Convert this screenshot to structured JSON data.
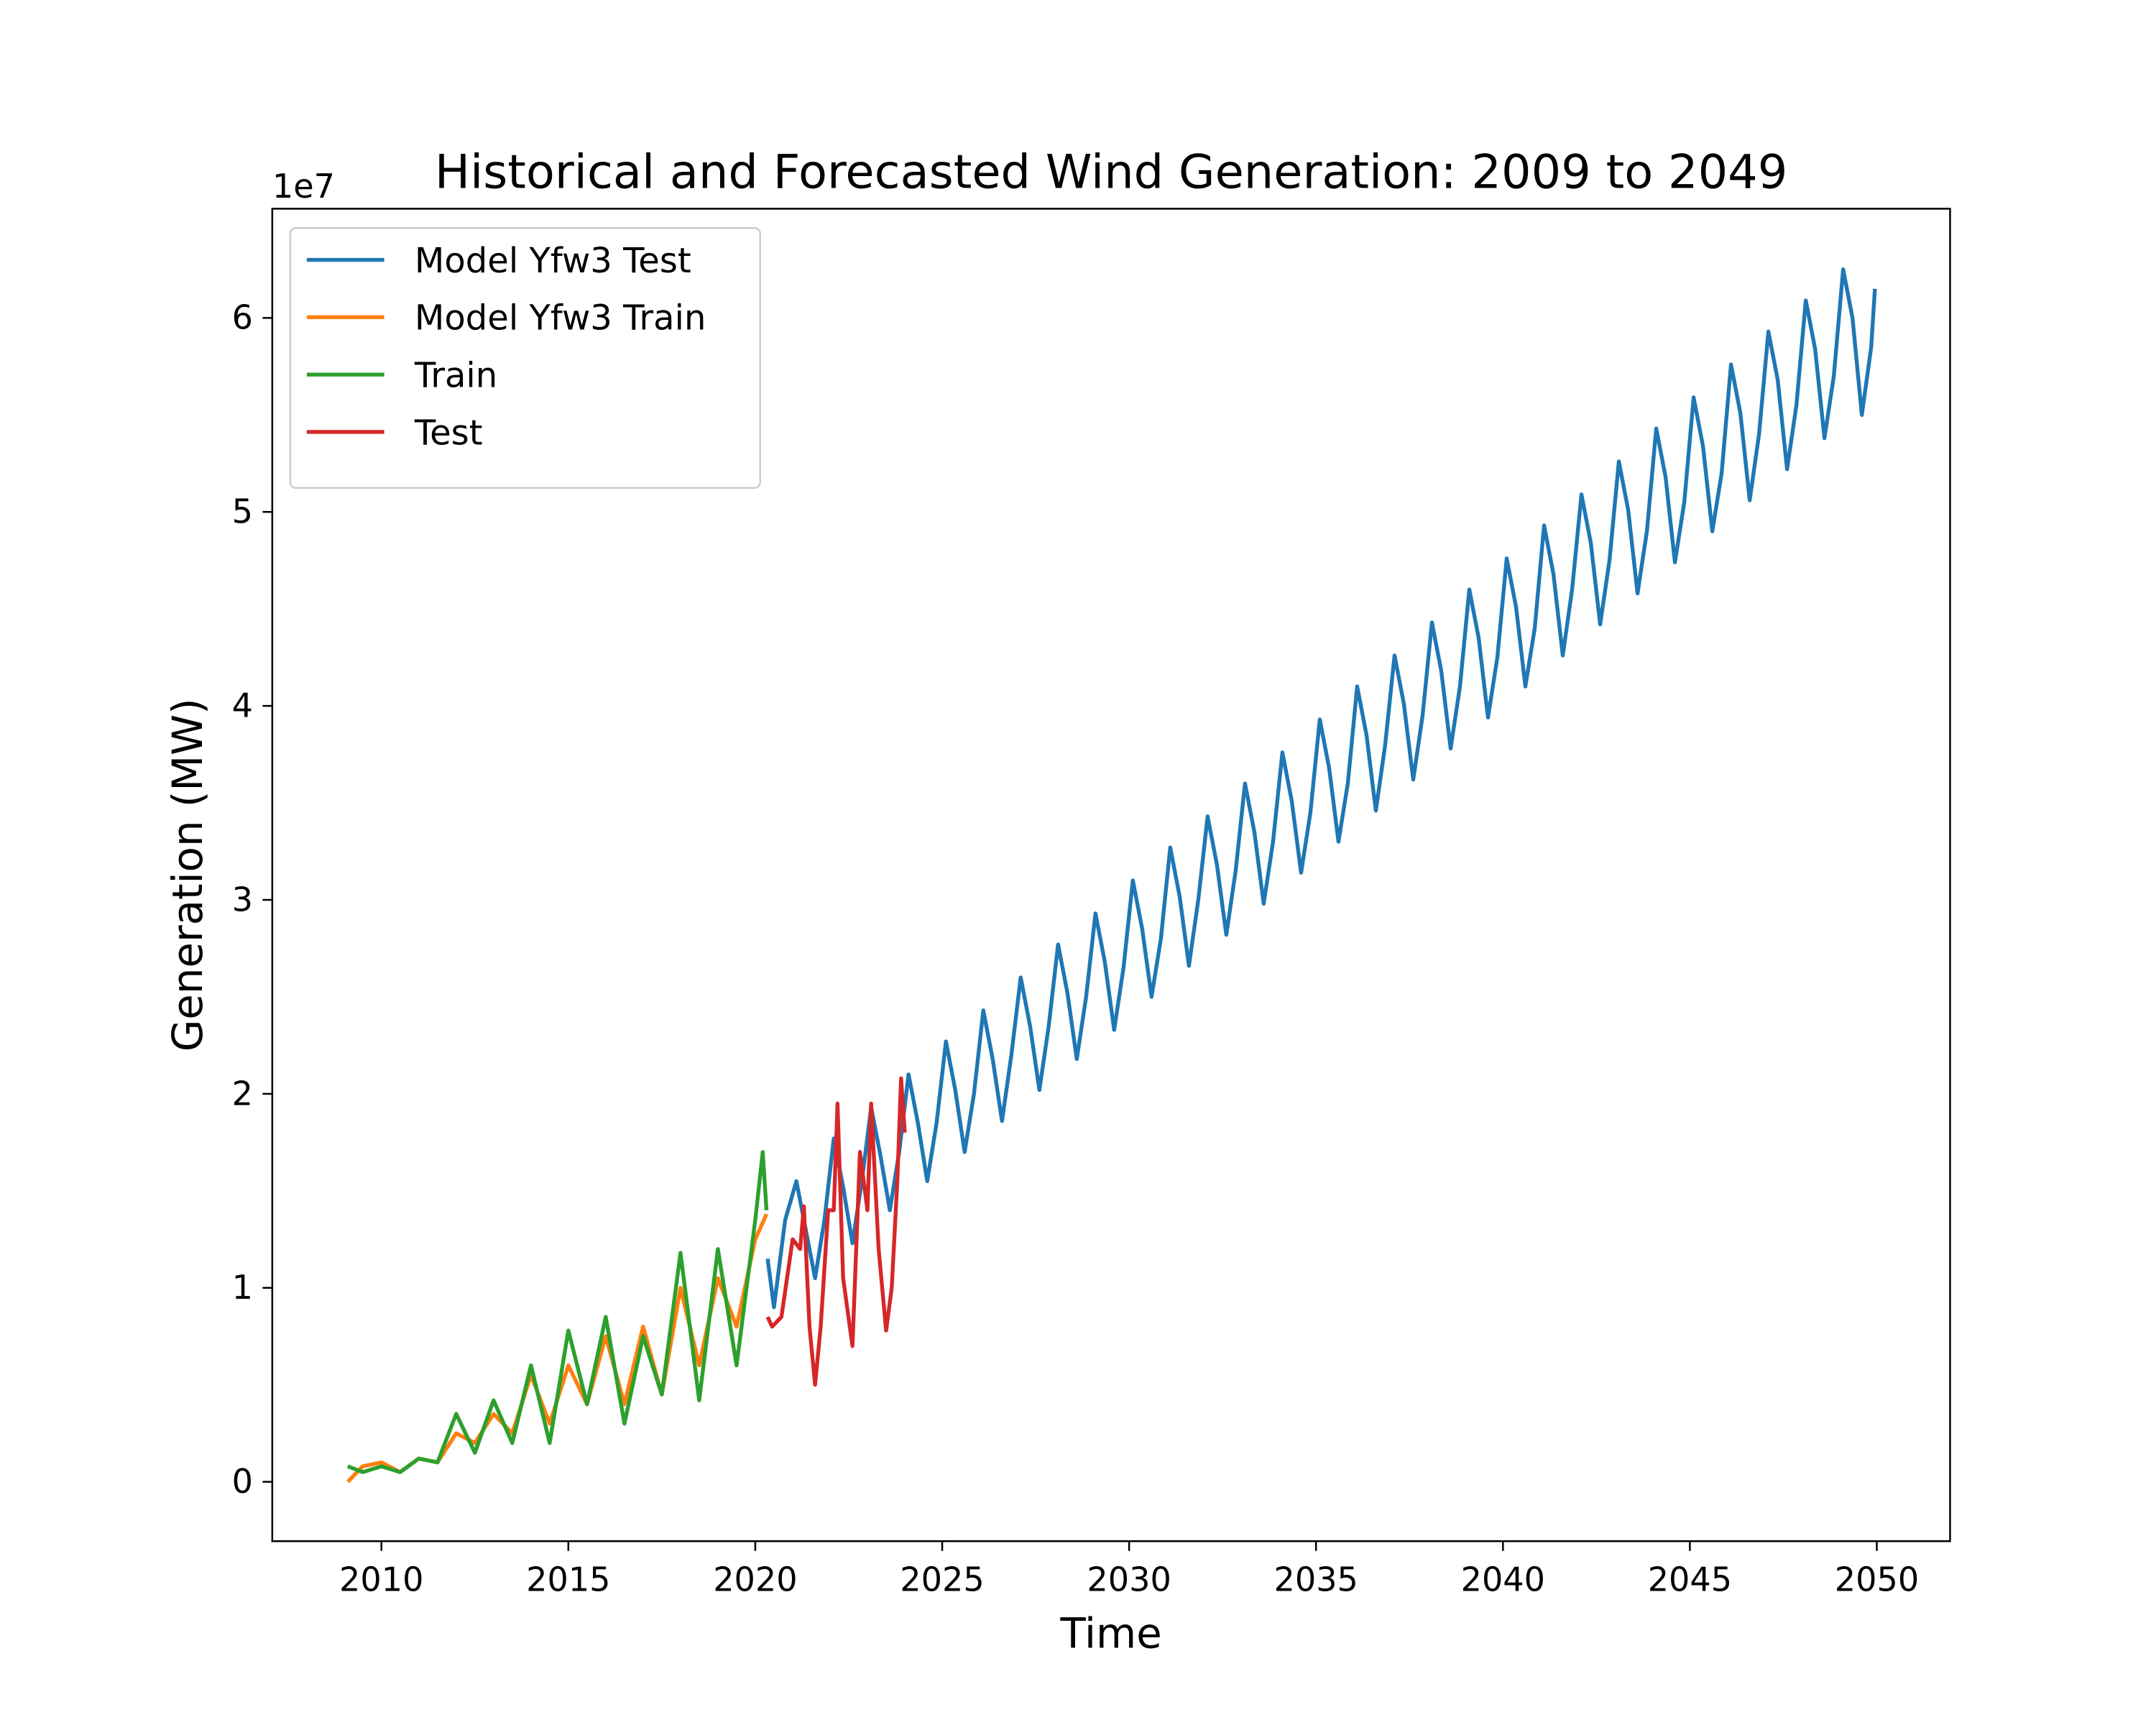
{
  "chart_data": {
    "type": "line",
    "title": "Historical and Forecasted Wind Generation: 2009 to 2049",
    "x_label": "Time",
    "y_label": "Generation (MW)",
    "y_offset_label": "1e7",
    "xlim": [
      2007.08,
      2051.96
    ],
    "ylim": [
      -0.306,
      6.563
    ],
    "xticks": [
      2010,
      2015,
      2020,
      2025,
      2030,
      2035,
      2040,
      2045,
      2050
    ],
    "yticks": [
      0,
      1,
      2,
      3,
      4,
      5,
      6
    ],
    "legend": "upper left",
    "series": [
      {
        "name": "Model Yfw3 Test",
        "color": "#1f77b4",
        "x": [
          2020.33,
          2020.5,
          2020.8,
          2021.1,
          2021.35,
          2021.6,
          2021.85,
          2022.1,
          2022.35,
          2022.6,
          2022.85,
          2023.1,
          2023.35,
          2023.6,
          2023.85,
          2024.1,
          2024.35,
          2024.6,
          2024.85,
          2025.1,
          2025.35,
          2025.6,
          2025.85,
          2026.1,
          2026.35,
          2026.6,
          2026.85,
          2027.1,
          2027.35,
          2027.6,
          2027.85,
          2028.1,
          2028.35,
          2028.6,
          2028.85,
          2029.1,
          2029.35,
          2029.6,
          2029.85,
          2030.1,
          2030.35,
          2030.6,
          2030.85,
          2031.1,
          2031.35,
          2031.6,
          2031.85,
          2032.1,
          2032.35,
          2032.6,
          2032.85,
          2033.1,
          2033.35,
          2033.6,
          2033.85,
          2034.1,
          2034.35,
          2034.6,
          2034.85,
          2035.1,
          2035.35,
          2035.6,
          2035.85,
          2036.1,
          2036.35,
          2036.6,
          2036.85,
          2037.1,
          2037.35,
          2037.6,
          2037.85,
          2038.1,
          2038.35,
          2038.6,
          2038.85,
          2039.1,
          2039.35,
          2039.6,
          2039.85,
          2040.1,
          2040.35,
          2040.6,
          2040.85,
          2041.1,
          2041.35,
          2041.6,
          2041.85,
          2042.1,
          2042.35,
          2042.6,
          2042.85,
          2043.1,
          2043.35,
          2043.6,
          2043.85,
          2044.1,
          2044.35,
          2044.6,
          2044.85,
          2045.1,
          2045.35,
          2045.6,
          2045.85,
          2046.1,
          2046.35,
          2046.6,
          2046.85,
          2047.1,
          2047.35,
          2047.6,
          2047.85,
          2048.1,
          2048.35,
          2048.6,
          2048.85,
          2049.1,
          2049.35,
          2049.6,
          2049.85,
          2049.95
        ],
        "values": [
          1.15,
          0.9,
          1.35,
          1.55,
          1.3,
          1.05,
          1.35,
          1.77,
          1.52,
          1.23,
          1.55,
          1.93,
          1.68,
          1.4,
          1.7,
          2.1,
          1.85,
          1.55,
          1.85,
          2.27,
          2.02,
          1.7,
          2.0,
          2.43,
          2.18,
          1.86,
          2.2,
          2.6,
          2.35,
          2.02,
          2.35,
          2.77,
          2.52,
          2.18,
          2.5,
          2.93,
          2.68,
          2.33,
          2.65,
          3.1,
          2.85,
          2.5,
          2.8,
          3.27,
          3.02,
          2.66,
          3.0,
          3.43,
          3.18,
          2.82,
          3.15,
          3.6,
          3.35,
          2.98,
          3.3,
          3.76,
          3.51,
          3.14,
          3.45,
          3.93,
          3.68,
          3.3,
          3.6,
          4.1,
          3.85,
          3.46,
          3.8,
          4.26,
          4.01,
          3.62,
          3.95,
          4.43,
          4.18,
          3.78,
          4.1,
          4.6,
          4.35,
          3.94,
          4.25,
          4.76,
          4.51,
          4.1,
          4.4,
          4.93,
          4.68,
          4.26,
          4.6,
          5.09,
          4.84,
          4.42,
          4.75,
          5.26,
          5.01,
          4.58,
          4.9,
          5.43,
          5.18,
          4.74,
          5.05,
          5.59,
          5.34,
          4.9,
          5.2,
          5.76,
          5.51,
          5.06,
          5.4,
          5.93,
          5.68,
          5.22,
          5.55,
          6.09,
          5.84,
          5.38,
          5.7,
          6.25,
          6.0,
          5.5,
          5.85,
          6.15
        ]
      },
      {
        "name": "Model Yfw3 Train",
        "color": "#ff7f0e",
        "x": [
          2009.1,
          2009.5,
          2010.0,
          2010.5,
          2011.0,
          2011.5,
          2012.0,
          2012.5,
          2013.0,
          2013.5,
          2014.0,
          2014.5,
          2015.0,
          2015.5,
          2016.0,
          2016.5,
          2017.0,
          2017.5,
          2018.0,
          2018.5,
          2019.0,
          2019.5,
          2020.0,
          2020.3
        ],
        "values": [
          0.0,
          0.08,
          0.1,
          0.05,
          0.12,
          0.1,
          0.25,
          0.2,
          0.35,
          0.25,
          0.55,
          0.3,
          0.6,
          0.4,
          0.75,
          0.4,
          0.8,
          0.45,
          1.0,
          0.6,
          1.05,
          0.8,
          1.25,
          1.38
        ]
      },
      {
        "name": "Train",
        "color": "#2ca02c",
        "x": [
          2009.1,
          2009.5,
          2010.0,
          2010.5,
          2011.0,
          2011.5,
          2012.0,
          2012.5,
          2013.0,
          2013.5,
          2014.0,
          2014.5,
          2015.0,
          2015.5,
          2016.0,
          2016.5,
          2017.0,
          2017.5,
          2018.0,
          2018.5,
          2019.0,
          2019.5,
          2020.0,
          2020.2,
          2020.3
        ],
        "values": [
          0.08,
          0.05,
          0.08,
          0.05,
          0.12,
          0.1,
          0.35,
          0.15,
          0.42,
          0.2,
          0.6,
          0.2,
          0.78,
          0.4,
          0.85,
          0.3,
          0.75,
          0.45,
          1.18,
          0.42,
          1.2,
          0.6,
          1.35,
          1.7,
          1.4
        ]
      },
      {
        "name": "Test",
        "color": "#d62728",
        "x": [
          2020.33,
          2020.45,
          2020.7,
          2021.0,
          2021.2,
          2021.3,
          2021.45,
          2021.6,
          2021.75,
          2021.95,
          2022.1,
          2022.2,
          2022.35,
          2022.6,
          2022.8,
          2023.0,
          2023.1,
          2023.3,
          2023.5,
          2023.65,
          2023.8,
          2023.9,
          2024.0
        ],
        "values": [
          0.85,
          0.8,
          0.85,
          1.25,
          1.2,
          1.42,
          0.8,
          0.5,
          0.8,
          1.4,
          1.4,
          1.95,
          1.05,
          0.7,
          1.7,
          1.4,
          1.95,
          1.2,
          0.78,
          1.0,
          1.55,
          2.08,
          1.8
        ]
      }
    ]
  }
}
